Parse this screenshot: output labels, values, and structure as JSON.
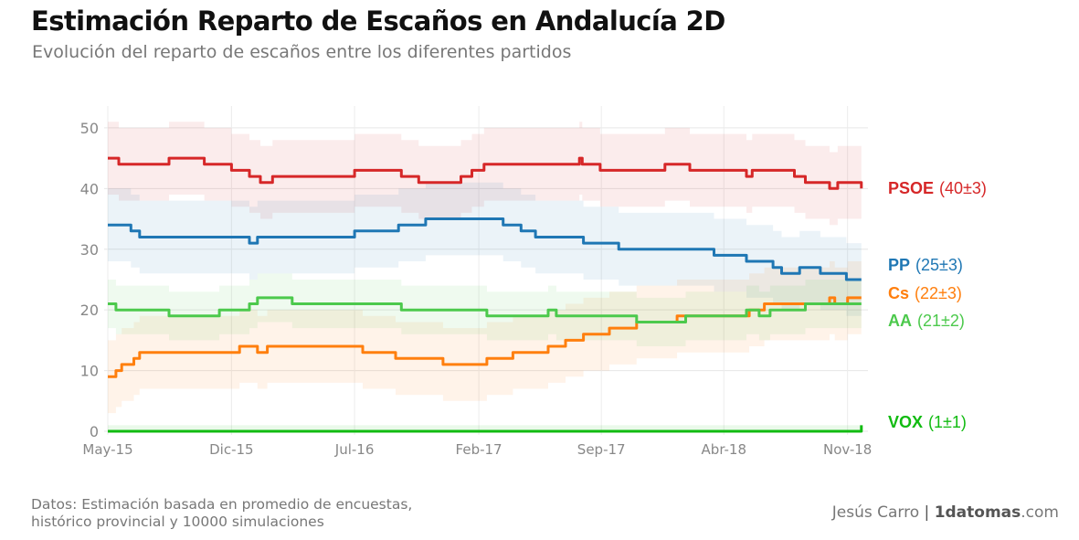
{
  "header": {
    "title": "Estimación Reparto de Escaños en Andalucía 2D",
    "subtitle": "Evolución del reparto de escaños entre los diferentes partidos"
  },
  "footer": {
    "source_line1": "Datos: Estimación basada en promedio de encuestas,",
    "source_line2": "histórico provincial y 10000 simulaciones",
    "author": "Jesús Carro",
    "separator": "|",
    "brand_bold": "1datomas",
    "brand_suffix": ".com"
  },
  "chart_data": {
    "type": "line",
    "title": "Estimación Reparto de Escaños en Andalucía 2D",
    "subtitle": "Evolución del reparto de escaños entre los diferentes partidos",
    "xlabel": "",
    "ylabel": "",
    "x_range": [
      "2015-05-01",
      "2018-11-30"
    ],
    "ylim": [
      0,
      53
    ],
    "y_ticks": [
      0,
      10,
      20,
      30,
      40,
      50
    ],
    "x_ticks": [
      {
        "date": "2015-05-01",
        "label": "May-15"
      },
      {
        "date": "2015-12-01",
        "label": "Dic-15"
      },
      {
        "date": "2016-07-01",
        "label": "Jul-16"
      },
      {
        "date": "2017-02-01",
        "label": "Feb-17"
      },
      {
        "date": "2017-09-01",
        "label": "Sep-17"
      },
      {
        "date": "2018-04-01",
        "label": "Abr-18"
      },
      {
        "date": "2018-11-01",
        "label": "Nov-18"
      }
    ],
    "grid": true,
    "legend": "direct labels at right end of lines",
    "series": [
      {
        "name": "PSOE",
        "final_label": "(40±3)",
        "color": "#d62728",
        "band": 6,
        "points": [
          [
            "2015-05-01",
            45
          ],
          [
            "2015-05-20",
            44
          ],
          [
            "2015-06-15",
            44
          ],
          [
            "2015-07-01",
            44
          ],
          [
            "2015-08-15",
            45
          ],
          [
            "2015-10-15",
            44
          ],
          [
            "2015-12-01",
            43
          ],
          [
            "2016-01-01",
            42
          ],
          [
            "2016-01-20",
            41
          ],
          [
            "2016-02-10",
            42
          ],
          [
            "2016-06-01",
            42
          ],
          [
            "2016-07-01",
            43
          ],
          [
            "2016-09-20",
            42
          ],
          [
            "2016-10-20",
            41
          ],
          [
            "2017-01-01",
            42
          ],
          [
            "2017-01-20",
            43
          ],
          [
            "2017-02-10",
            44
          ],
          [
            "2017-07-25",
            45
          ],
          [
            "2017-07-30",
            44
          ],
          [
            "2017-08-30",
            43
          ],
          [
            "2017-12-20",
            44
          ],
          [
            "2018-02-01",
            43
          ],
          [
            "2018-05-10",
            42
          ],
          [
            "2018-05-20",
            43
          ],
          [
            "2018-08-01",
            42
          ],
          [
            "2018-08-20",
            41
          ],
          [
            "2018-10-01",
            40
          ],
          [
            "2018-10-15",
            41
          ],
          [
            "2018-11-25",
            40
          ]
        ]
      },
      {
        "name": "PP",
        "final_label": "(25±3)",
        "color": "#1f77b4",
        "band": 6,
        "points": [
          [
            "2015-05-01",
            34
          ],
          [
            "2015-06-10",
            33
          ],
          [
            "2015-06-25",
            32
          ],
          [
            "2015-12-01",
            32
          ],
          [
            "2016-01-01",
            31
          ],
          [
            "2016-01-15",
            32
          ],
          [
            "2016-06-01",
            32
          ],
          [
            "2016-07-01",
            33
          ],
          [
            "2016-09-15",
            34
          ],
          [
            "2016-11-01",
            35
          ],
          [
            "2017-03-15",
            34
          ],
          [
            "2017-04-15",
            33
          ],
          [
            "2017-05-10",
            32
          ],
          [
            "2017-08-01",
            31
          ],
          [
            "2017-10-01",
            30
          ],
          [
            "2018-01-10",
            30
          ],
          [
            "2018-03-15",
            29
          ],
          [
            "2018-05-10",
            28
          ],
          [
            "2018-06-25",
            27
          ],
          [
            "2018-07-10",
            26
          ],
          [
            "2018-08-10",
            27
          ],
          [
            "2018-09-15",
            26
          ],
          [
            "2018-10-10",
            26
          ],
          [
            "2018-10-30",
            25
          ],
          [
            "2018-11-25",
            25
          ]
        ]
      },
      {
        "name": "Cs",
        "final_label": "(22±3)",
        "color": "#ff7f0e",
        "band": 6,
        "points": [
          [
            "2015-05-01",
            9
          ],
          [
            "2015-05-15",
            10
          ],
          [
            "2015-05-25",
            11
          ],
          [
            "2015-06-15",
            12
          ],
          [
            "2015-06-25",
            13
          ],
          [
            "2015-12-01",
            13
          ],
          [
            "2015-12-15",
            14
          ],
          [
            "2016-01-15",
            13
          ],
          [
            "2016-02-01",
            14
          ],
          [
            "2016-06-01",
            14
          ],
          [
            "2016-07-15",
            13
          ],
          [
            "2016-09-10",
            12
          ],
          [
            "2016-10-15",
            12
          ],
          [
            "2016-12-01",
            11
          ],
          [
            "2017-02-15",
            12
          ],
          [
            "2017-04-01",
            13
          ],
          [
            "2017-06-01",
            14
          ],
          [
            "2017-07-01",
            15
          ],
          [
            "2017-08-01",
            16
          ],
          [
            "2017-09-15",
            17
          ],
          [
            "2017-11-01",
            18
          ],
          [
            "2018-01-10",
            19
          ],
          [
            "2018-05-01",
            19
          ],
          [
            "2018-05-15",
            20
          ],
          [
            "2018-05-25",
            20
          ],
          [
            "2018-06-10",
            21
          ],
          [
            "2018-10-01",
            22
          ],
          [
            "2018-10-10",
            21
          ],
          [
            "2018-11-01",
            22
          ],
          [
            "2018-11-25",
            22
          ]
        ]
      },
      {
        "name": "AA",
        "final_label": "(21±2)",
        "color": "#4cc94c",
        "band": 4,
        "points": [
          [
            "2015-05-01",
            21
          ],
          [
            "2015-05-15",
            20
          ],
          [
            "2015-08-01",
            20
          ],
          [
            "2015-08-15",
            19
          ],
          [
            "2015-11-10",
            20
          ],
          [
            "2016-01-01",
            21
          ],
          [
            "2016-01-15",
            22
          ],
          [
            "2016-03-15",
            21
          ],
          [
            "2016-09-20",
            20
          ],
          [
            "2017-01-01",
            20
          ],
          [
            "2017-02-15",
            19
          ],
          [
            "2017-06-01",
            20
          ],
          [
            "2017-06-15",
            19
          ],
          [
            "2017-11-01",
            18
          ],
          [
            "2018-01-25",
            19
          ],
          [
            "2018-05-10",
            20
          ],
          [
            "2018-06-01",
            19
          ],
          [
            "2018-06-20",
            20
          ],
          [
            "2018-08-20",
            21
          ],
          [
            "2018-11-25",
            21
          ]
        ]
      },
      {
        "name": "VOX",
        "final_label": "(1±1)",
        "color": "#11bb11",
        "band": 1,
        "points": [
          [
            "2015-05-01",
            0
          ],
          [
            "2018-11-20",
            0
          ],
          [
            "2018-11-25",
            1
          ]
        ]
      }
    ]
  }
}
